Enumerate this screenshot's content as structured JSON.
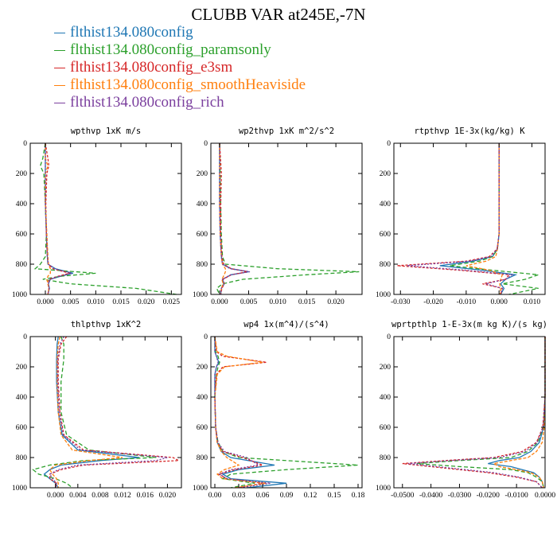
{
  "title": "CLUBB VAR at245E,-7N",
  "legend": [
    {
      "label": "flthist134.080config",
      "color": "#1f77b4"
    },
    {
      "label": "flthist134.080config_paramsonly",
      "color": "#2ca02c"
    },
    {
      "label": "flthist134.080config_e3sm",
      "color": "#d62728"
    },
    {
      "label": "flthist134.080config_smoothHeaviside",
      "color": "#ff7f0e"
    },
    {
      "label": "flthist134.080config_rich",
      "color": "#7b3f9e"
    }
  ],
  "chart_data": [
    {
      "type": "line",
      "title": "wpthvp   1xK m/s",
      "xlim": [
        -0.003,
        0.027
      ],
      "xticks": [
        "0.000",
        "0.005",
        "0.010",
        "0.015",
        "0.020",
        "0.025"
      ],
      "xtick_values": [
        0,
        0.005,
        0.01,
        0.015,
        0.02,
        0.025
      ],
      "ylim": [
        0,
        1000
      ],
      "yticks": [
        "0",
        "200",
        "400",
        "600",
        "800",
        "1000"
      ],
      "y": [
        0,
        100,
        150,
        200,
        400,
        600,
        750,
        800,
        830,
        860,
        880,
        900,
        930,
        960,
        1000
      ],
      "series": [
        {
          "name": "flthist134.080config",
          "values": [
            0,
            0,
            0,
            0,
            0,
            0.0002,
            0.0004,
            0.0005,
            0.002,
            0.0055,
            0.003,
            0.001,
            0.0006,
            0.0008,
            0.0005
          ]
        },
        {
          "name": "flthist134.080config_paramsonly",
          "values": [
            0,
            -0.0005,
            -0.001,
            -0.0003,
            0,
            0.0002,
            0,
            -0.001,
            -0.002,
            0.01,
            0.003,
            -0.0005,
            0.005,
            0.018,
            0.026
          ]
        },
        {
          "name": "flthist134.080config_e3sm",
          "values": [
            0,
            0.0005,
            0.0007,
            0.0003,
            0.0001,
            0.0002,
            0.0004,
            0.0006,
            0.0015,
            0.0048,
            0.0025,
            0.0008,
            0.0005,
            0.0007,
            0.0005
          ]
        },
        {
          "name": "flthist134.080config_smoothHeaviside",
          "values": [
            0,
            0,
            0.0005,
            0,
            0,
            0.0003,
            0.0005,
            0.0006,
            0.001,
            0.001,
            0.0005,
            0.0003,
            0.0005,
            0.0007,
            0.0005
          ]
        },
        {
          "name": "flthist134.080config_rich",
          "values": [
            0,
            0,
            0,
            0,
            0,
            0.0002,
            0.0004,
            0.0006,
            0.0018,
            0.0052,
            0.0028,
            0.0009,
            0.0006,
            0.0008,
            0.0005
          ]
        }
      ]
    },
    {
      "type": "line",
      "title": "wp2thvp   1xK m^2/s^2",
      "xlim": [
        -0.0015,
        0.0245
      ],
      "xticks": [
        "0.000",
        "0.005",
        "0.010",
        "0.015",
        "0.020"
      ],
      "xtick_values": [
        0,
        0.005,
        0.01,
        0.015,
        0.02
      ],
      "ylim": [
        0,
        1000
      ],
      "yticks": [
        "0",
        "200",
        "400",
        "600",
        "800",
        "1000"
      ],
      "y": [
        0,
        200,
        400,
        600,
        750,
        800,
        830,
        850,
        870,
        900,
        930,
        960,
        1000
      ],
      "series": [
        {
          "name": "flthist134.080config",
          "values": [
            0,
            0,
            0,
            0.0001,
            0.0003,
            0.0005,
            0.002,
            0.005,
            0.002,
            0.0005,
            0.0008,
            0.0003,
            0.0002
          ]
        },
        {
          "name": "flthist134.080config_paramsonly",
          "values": [
            0,
            0.0001,
            0.0002,
            0.0003,
            0.0005,
            0.001,
            0.01,
            0.024,
            0.015,
            0.004,
            0.0005,
            -0.0005,
            0
          ]
        },
        {
          "name": "flthist134.080config_e3sm",
          "values": [
            0,
            0.0003,
            0.0002,
            0.0002,
            0.0004,
            0.0007,
            0.002,
            0.0048,
            0.002,
            0.0006,
            0.0008,
            0.0004,
            0.0002
          ]
        },
        {
          "name": "flthist134.080config_smoothHeaviside",
          "values": [
            0,
            0,
            0,
            0.0001,
            0.0003,
            0.0005,
            0.001,
            0.001,
            0.0008,
            0.0004,
            0.0006,
            0.0003,
            0.0002
          ]
        },
        {
          "name": "flthist134.080config_rich",
          "values": [
            0,
            0,
            0,
            0.0001,
            0.0003,
            0.0005,
            0.0018,
            0.0052,
            0.0019,
            0.0005,
            0.0008,
            0.0003,
            0.0002
          ]
        }
      ]
    },
    {
      "type": "line",
      "title": "rtpthvp   1E-3x(kg/kg) K",
      "xlim": [
        -0.032,
        0.014
      ],
      "xticks": [
        "-0.030",
        "-0.020",
        "-0.010",
        "0.000",
        "0.010"
      ],
      "xtick_values": [
        -0.03,
        -0.02,
        -0.01,
        0,
        0.01
      ],
      "ylim": [
        0,
        1000
      ],
      "yticks": [
        "0",
        "200",
        "400",
        "600",
        "800",
        "1000"
      ],
      "y": [
        0,
        200,
        400,
        600,
        700,
        750,
        780,
        810,
        840,
        870,
        900,
        930,
        960,
        1000
      ],
      "series": [
        {
          "name": "flthist134.080config",
          "values": [
            0,
            0,
            0,
            0,
            -0.0005,
            -0.002,
            -0.008,
            -0.018,
            -0.005,
            0.005,
            0.002,
            0.0005,
            0.0015,
            0.0005
          ]
        },
        {
          "name": "flthist134.080config_paramsonly",
          "values": [
            0,
            0,
            0,
            0,
            -0.0005,
            -0.002,
            -0.006,
            -0.015,
            -0.002,
            0.012,
            0.008,
            0.001,
            0.012,
            0.003
          ]
        },
        {
          "name": "flthist134.080config_e3sm",
          "values": [
            0,
            0,
            0,
            0,
            -0.0006,
            -0.003,
            -0.01,
            -0.031,
            -0.012,
            0.003,
            0.002,
            -0.005,
            0.001,
            0.0005
          ]
        },
        {
          "name": "flthist134.080config_smoothHeaviside",
          "values": [
            0,
            0,
            0,
            0,
            -0.0005,
            -0.001,
            -0.004,
            -0.01,
            -0.003,
            0.001,
            0.0005,
            0.0002,
            0.0005,
            0.0003
          ]
        },
        {
          "name": "flthist134.080config_rich",
          "values": [
            0,
            0,
            0,
            0,
            -0.0006,
            -0.0025,
            -0.009,
            -0.028,
            -0.01,
            0.004,
            0.002,
            -0.004,
            0.001,
            0.0005
          ]
        }
      ]
    },
    {
      "type": "line",
      "title": "thlpthvp   1xK^2",
      "xlim": [
        -0.0045,
        0.0225
      ],
      "xticks": [
        "0.000",
        "0.004",
        "0.008",
        "0.012",
        "0.016",
        "0.020"
      ],
      "xtick_values": [
        0,
        0.004,
        0.008,
        0.012,
        0.016,
        0.02
      ],
      "ylim": [
        0,
        1000
      ],
      "yticks": [
        "0",
        "200",
        "400",
        "600",
        "800",
        "1000"
      ],
      "y": [
        0,
        50,
        150,
        300,
        500,
        650,
        750,
        800,
        820,
        850,
        880,
        910,
        940,
        970,
        1000
      ],
      "series": [
        {
          "name": "flthist134.080config",
          "values": [
            0.0005,
            0.0003,
            0.0002,
            0.0002,
            0.0005,
            0.0012,
            0.004,
            0.015,
            0.008,
            0.001,
            -0.001,
            -0.002,
            -0.001,
            0,
            0.0005
          ]
        },
        {
          "name": "flthist134.080config_paramsonly",
          "values": [
            0.001,
            0.0015,
            0.0015,
            0.001,
            0.001,
            0.002,
            0.006,
            0.018,
            0.005,
            -0.001,
            -0.004,
            -0.003,
            0,
            0.002,
            0.003
          ]
        },
        {
          "name": "flthist134.080config_e3sm",
          "values": [
            0.002,
            0.001,
            0.0005,
            0.0005,
            0.0008,
            0.0015,
            0.005,
            0.021,
            0.022,
            0.005,
            0.001,
            -0.001,
            -0.001,
            0.0002,
            0
          ]
        },
        {
          "name": "flthist134.080config_smoothHeaviside",
          "values": [
            0.0008,
            0.0005,
            0.0003,
            0.0003,
            0.0005,
            0.001,
            0.003,
            0.012,
            0.006,
            0,
            -0.001,
            -0.0005,
            0.0002,
            0.0005,
            0.0005
          ]
        },
        {
          "name": "flthist134.080config_rich",
          "values": [
            0.0015,
            0.0008,
            0.0004,
            0.0004,
            0.0007,
            0.0014,
            0.0045,
            0.02,
            0.018,
            0.004,
            0.0005,
            -0.001,
            -0.0005,
            0.0002,
            0
          ]
        }
      ]
    },
    {
      "type": "line",
      "title": "wp4   1x(m^4)/(s^4)",
      "xlim": [
        -0.005,
        0.185
      ],
      "xticks": [
        "0.00",
        "0.03",
        "0.06",
        "0.09",
        "0.12",
        "0.15",
        "0.18"
      ],
      "xtick_values": [
        0,
        0.03,
        0.06,
        0.09,
        0.12,
        0.15,
        0.18
      ],
      "ylim": [
        0,
        1000
      ],
      "yticks": [
        "0",
        "200",
        "400",
        "600",
        "800",
        "1000"
      ],
      "y": [
        0,
        100,
        130,
        170,
        200,
        250,
        400,
        600,
        700,
        760,
        800,
        850,
        880,
        910,
        940,
        970,
        1000
      ],
      "series": [
        {
          "name": "flthist134.080config",
          "values": [
            0,
            0,
            0.002,
            0.005,
            0.002,
            0,
            0,
            0.001,
            0.003,
            0.008,
            0.02,
            0.075,
            0.03,
            0.01,
            0.02,
            0.09,
            0.04
          ]
        },
        {
          "name": "flthist134.080config_paramsonly",
          "values": [
            0,
            0.001,
            0.004,
            0.006,
            0.004,
            0.002,
            0,
            0.001,
            0.004,
            0.01,
            0.03,
            0.18,
            0.09,
            0.02,
            0.01,
            0.05,
            0.02
          ]
        },
        {
          "name": "flthist134.080config_e3sm",
          "values": [
            0,
            0.002,
            0.01,
            0.065,
            0.01,
            0.002,
            0,
            0.001,
            0.003,
            0.01,
            0.035,
            0.06,
            0.025,
            0.005,
            0.015,
            0.06,
            0.03
          ]
        },
        {
          "name": "flthist134.080config_smoothHeaviside",
          "values": [
            0,
            0.003,
            0.015,
            0.06,
            0.012,
            0.003,
            0,
            0.001,
            0.003,
            0.008,
            0.015,
            0.03,
            0.012,
            0.003,
            0.01,
            0.065,
            0.025
          ]
        },
        {
          "name": "flthist134.080config_rich",
          "values": [
            0,
            0,
            0.002,
            0.004,
            0.002,
            0,
            0,
            0.001,
            0.004,
            0.012,
            0.04,
            0.055,
            0.02,
            0.006,
            0.015,
            0.07,
            0.03
          ]
        }
      ]
    },
    {
      "type": "line",
      "title": "wprtpthlp   1-E-3x(m kg K)/(s kg)",
      "xlim": [
        -0.053,
        0
      ],
      "xticks": [
        "-0.0500",
        "-0.0400",
        "-0.0300",
        "-0.0200",
        "-0.0100",
        "0.0000"
      ],
      "xtick_values": [
        -0.05,
        -0.04,
        -0.03,
        -0.02,
        -0.01,
        0
      ],
      "ylim": [
        0,
        1000
      ],
      "yticks": [
        "0",
        "200",
        "400",
        "600",
        "800",
        "1000"
      ],
      "y": [
        0,
        200,
        400,
        600,
        700,
        760,
        800,
        820,
        840,
        860,
        880,
        900,
        930,
        960,
        1000
      ],
      "series": [
        {
          "name": "flthist134.080config",
          "values": [
            0,
            0,
            0,
            -0.0005,
            -0.002,
            -0.005,
            -0.009,
            -0.016,
            -0.02,
            -0.012,
            -0.008,
            -0.004,
            -0.002,
            -0.001,
            -0.0005
          ]
        },
        {
          "name": "flthist134.080config_paramsonly",
          "values": [
            0,
            0,
            0,
            -0.0006,
            -0.0025,
            -0.006,
            -0.012,
            -0.03,
            -0.045,
            -0.03,
            -0.012,
            -0.006,
            -0.003,
            -0.001,
            -0.0005
          ]
        },
        {
          "name": "flthist134.080config_e3sm",
          "values": [
            0,
            0,
            0,
            -0.0008,
            -0.003,
            -0.008,
            -0.018,
            -0.035,
            -0.05,
            -0.04,
            -0.03,
            -0.02,
            -0.01,
            -0.003,
            -0.001
          ]
        },
        {
          "name": "flthist134.080config_smoothHeaviside",
          "values": [
            0,
            0,
            0,
            -0.0003,
            -0.001,
            -0.003,
            -0.006,
            -0.012,
            -0.018,
            -0.016,
            -0.01,
            -0.005,
            -0.002,
            -0.001,
            -0.0005
          ]
        },
        {
          "name": "flthist134.080config_rich",
          "values": [
            0,
            0,
            0,
            -0.0007,
            -0.0028,
            -0.007,
            -0.016,
            -0.033,
            -0.048,
            -0.038,
            -0.028,
            -0.018,
            -0.009,
            -0.003,
            -0.001
          ]
        }
      ]
    }
  ]
}
